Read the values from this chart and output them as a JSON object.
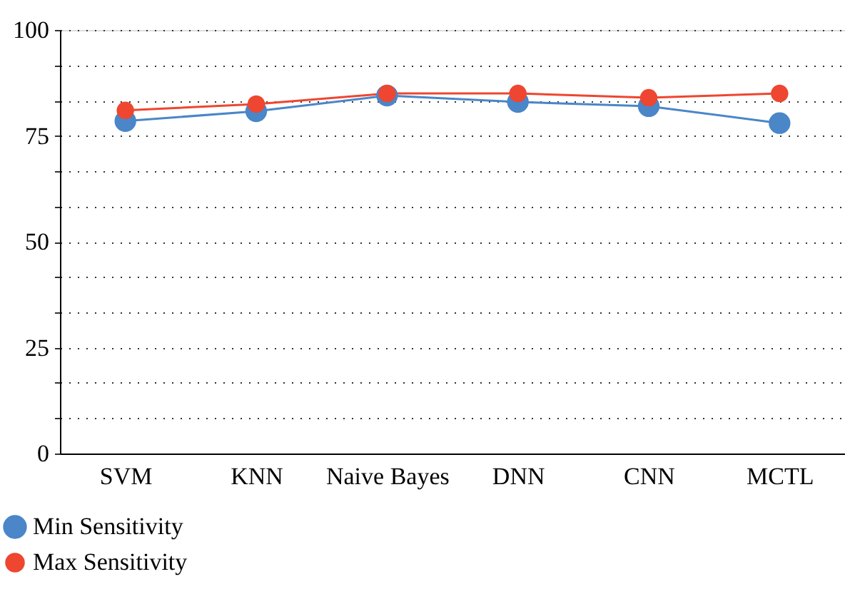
{
  "chart_data": {
    "type": "line",
    "categories": [
      "SVM",
      "KNN",
      "Naive Bayes",
      "DNN",
      "CNN",
      "MCTL"
    ],
    "series": [
      {
        "name": "Min Sensitivity",
        "color": "#4a86c8",
        "values": [
          78.5,
          80.8,
          84.5,
          83,
          82,
          78
        ]
      },
      {
        "name": "Max Sensitivity",
        "color": "#ee4630",
        "values": [
          81,
          82.5,
          85,
          85,
          84,
          85
        ]
      }
    ],
    "ylim": [
      0,
      100
    ],
    "yticks": [
      0,
      {
        "value": 8.33,
        "label": null
      },
      {
        "value": 16.67,
        "label": null
      },
      25,
      {
        "value": 33.33,
        "label": null
      },
      {
        "value": 41.67,
        "label": null
      },
      50,
      {
        "value": 58.33,
        "label": null
      },
      {
        "value": 66.67,
        "label": null
      },
      75,
      {
        "value": 83.33,
        "label": null
      },
      {
        "value": 91.67,
        "label": null
      },
      100
    ],
    "grid": "y",
    "legend": "bottom left",
    "marker": "circle",
    "line_style": "solid"
  }
}
